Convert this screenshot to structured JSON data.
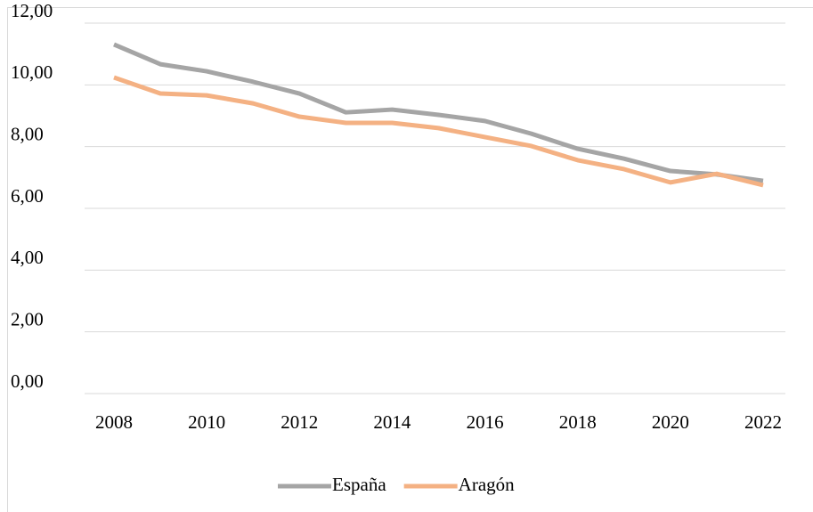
{
  "chart_data": {
    "type": "line",
    "x": [
      2008,
      2009,
      2010,
      2011,
      2012,
      2013,
      2014,
      2015,
      2016,
      2017,
      2018,
      2019,
      2020,
      2021,
      2022
    ],
    "series": [
      {
        "name": "España",
        "color": "#a5a5a5",
        "values": [
          11.31,
          10.67,
          10.44,
          10.1,
          9.72,
          9.11,
          9.2,
          9.03,
          8.83,
          8.42,
          7.93,
          7.61,
          7.21,
          7.1,
          6.89
        ]
      },
      {
        "name": "Aragón",
        "color": "#f4b183",
        "values": [
          10.24,
          9.72,
          9.66,
          9.4,
          8.97,
          8.77,
          8.77,
          8.6,
          8.31,
          8.02,
          7.56,
          7.27,
          6.84,
          7.12,
          6.75
        ]
      }
    ],
    "xlim": [
      2008,
      2022
    ],
    "xticks": [
      2008,
      2010,
      2012,
      2014,
      2016,
      2018,
      2020,
      2022
    ],
    "ylim": [
      0,
      12
    ],
    "yticks": [
      {
        "value": 0,
        "label": "0,00"
      },
      {
        "value": 2,
        "label": "2,00"
      },
      {
        "value": 4,
        "label": "4,00"
      },
      {
        "value": 6,
        "label": "6,00"
      },
      {
        "value": 8,
        "label": "8,00"
      },
      {
        "value": 10,
        "label": "10,00"
      },
      {
        "value": 12,
        "label": "12,00"
      }
    ],
    "grid": true,
    "legend": "bottom"
  }
}
